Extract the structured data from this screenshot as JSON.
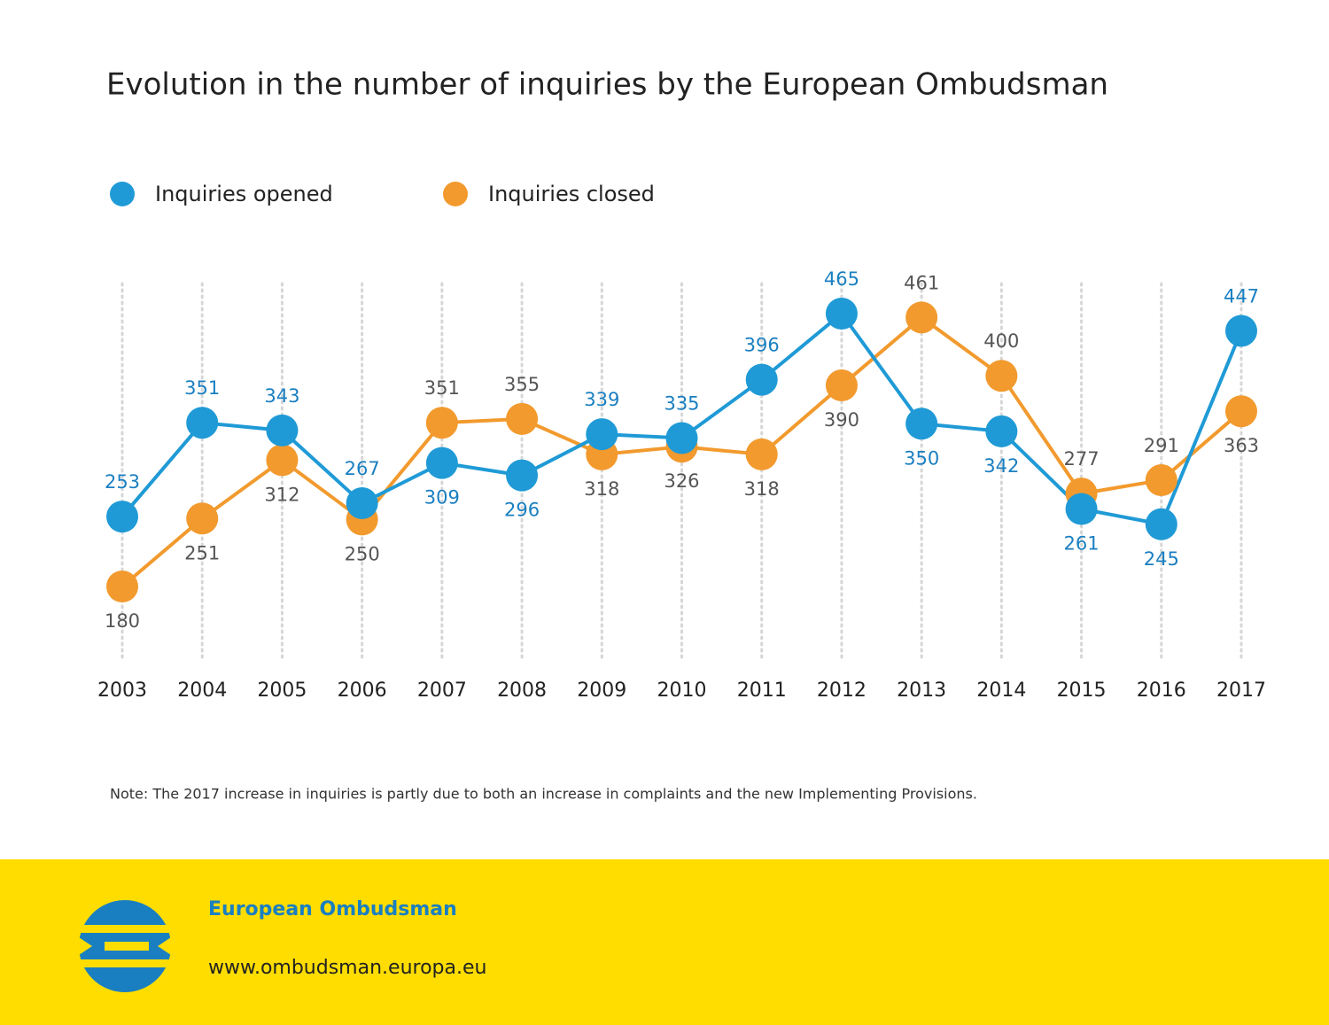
{
  "chart_data": {
    "type": "line",
    "title": "Evolution in the number of inquiries by the European Ombudsman",
    "categories": [
      "2003",
      "2004",
      "2005",
      "2006",
      "2007",
      "2008",
      "2009",
      "2010",
      "2011",
      "2012",
      "2013",
      "2014",
      "2015",
      "2016",
      "2017"
    ],
    "series": [
      {
        "name": "Inquiries opened",
        "color": "#1f9ad6",
        "values": [
          253,
          351,
          343,
          267,
          309,
          296,
          339,
          335,
          396,
          465,
          350,
          342,
          261,
          245,
          447
        ]
      },
      {
        "name": "Inquiries closed",
        "color": "#f29a2e",
        "values": [
          180,
          251,
          312,
          250,
          351,
          355,
          318,
          326,
          318,
          390,
          461,
          400,
          277,
          291,
          363
        ]
      }
    ],
    "grid": true,
    "note": "Note: The 2017 increase in inquiries is partly due to both an increase in complaints and the new Implementing Provisions."
  },
  "footer": {
    "name": "European Ombudsman",
    "url": "www.ombudsman.europa.eu"
  }
}
